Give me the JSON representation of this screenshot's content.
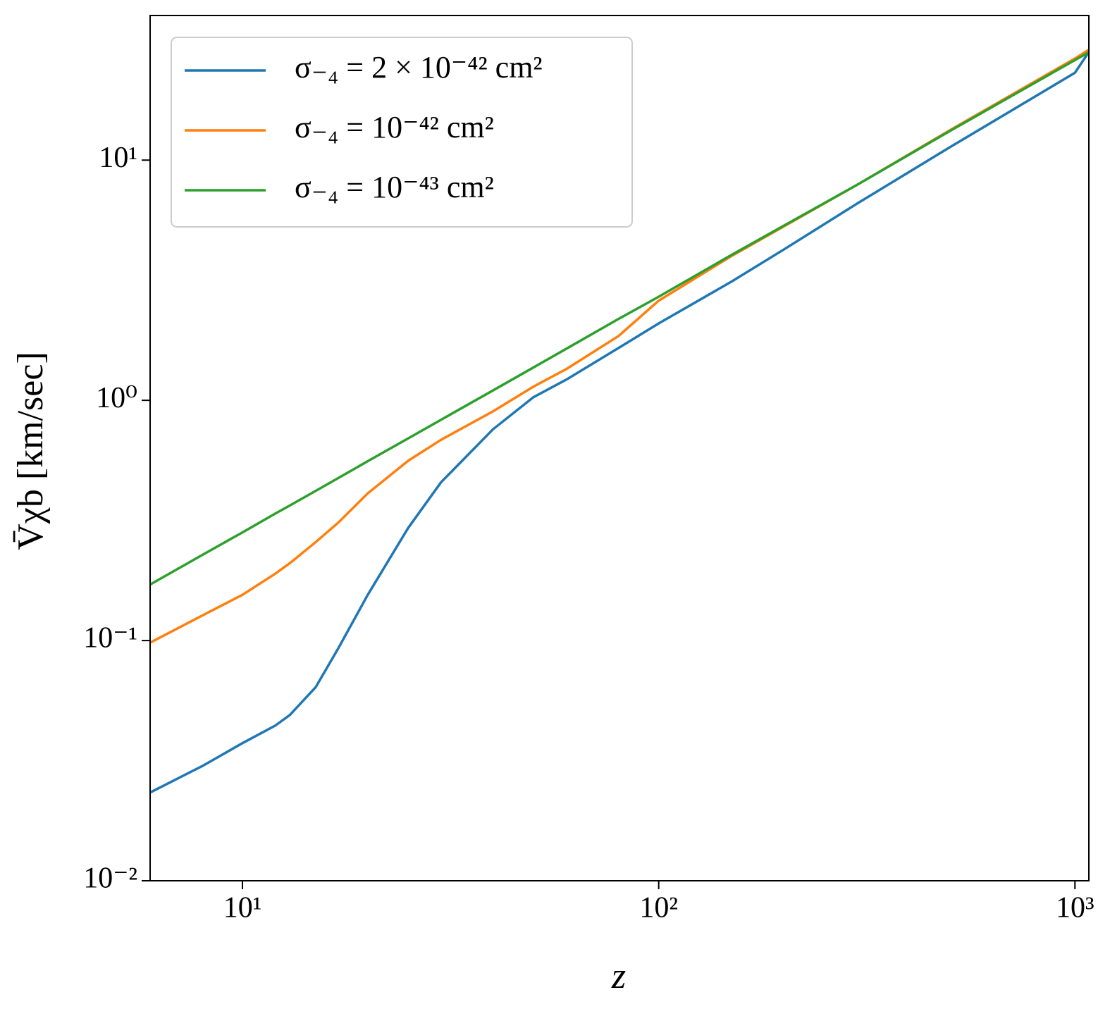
{
  "chart_data": {
    "type": "line",
    "xlabel": "z",
    "ylabel": "V̄χb [km/sec]",
    "xscale": "log",
    "yscale": "log",
    "grid": false,
    "legend": "upper left",
    "x": [
      6,
      8,
      10,
      12,
      13,
      15,
      17,
      20,
      25,
      30,
      40,
      50,
      60,
      80,
      100,
      150,
      200,
      300,
      500,
      1000,
      1080
    ],
    "series": [
      {
        "name": "σ₋₄ = 2 × 10⁻⁴² cm²",
        "color": "#1f77b4",
        "values": [
          0.0233,
          0.03,
          0.0374,
          0.0443,
          0.049,
          0.064,
          0.093,
          0.155,
          0.294,
          0.456,
          0.758,
          1.03,
          1.22,
          1.65,
          2.09,
          3.13,
          4.25,
          6.6,
          11.3,
          23.1,
          28.2
        ]
      },
      {
        "name": "σ₋₄ = 10⁻⁴² cm²",
        "color": "#ff7f0e",
        "values": [
          0.098,
          0.127,
          0.155,
          0.19,
          0.21,
          0.257,
          0.31,
          0.41,
          0.56,
          0.685,
          0.9,
          1.14,
          1.35,
          1.85,
          2.6,
          4.0,
          5.3,
          7.9,
          13.3,
          26.5,
          28.8
        ]
      },
      {
        "name": "σ₋₄ = 10⁻⁴³ cm²",
        "color": "#2ca02c",
        "values": [
          0.171,
          0.227,
          0.282,
          0.338,
          0.365,
          0.42,
          0.475,
          0.558,
          0.694,
          0.83,
          1.1,
          1.37,
          1.64,
          2.18,
          2.7,
          4.04,
          5.34,
          7.9,
          13.2,
          26.1,
          28.1
        ]
      }
    ],
    "xlim": [
      6,
      1080
    ],
    "ylim": [
      0.01,
      40
    ],
    "xticks": [
      {
        "value": 10,
        "label": "10¹"
      },
      {
        "value": 100,
        "label": "10²"
      },
      {
        "value": 1000,
        "label": "10³"
      }
    ],
    "yticks": [
      {
        "value": 0.01,
        "label": "10⁻²"
      },
      {
        "value": 0.1,
        "label": "10⁻¹"
      },
      {
        "value": 1,
        "label": "10⁰"
      },
      {
        "value": 10,
        "label": "10¹"
      }
    ]
  }
}
